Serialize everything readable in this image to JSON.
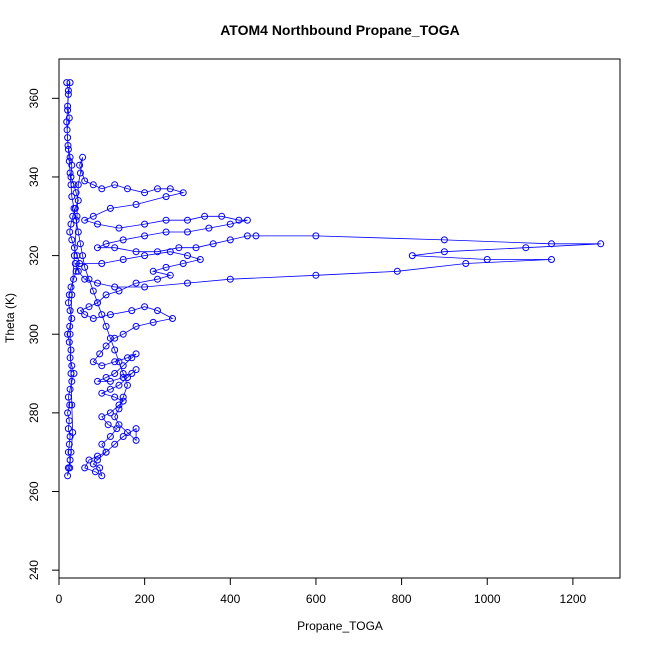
{
  "chart_data": {
    "type": "line",
    "title": "ATOM4 Northbound Propane_TOGA",
    "xlabel": "Propane_TOGA",
    "ylabel": "Theta (K)",
    "xlim": [
      0,
      1310
    ],
    "ylim": [
      238,
      370
    ],
    "xticks": [
      0,
      200,
      400,
      600,
      800,
      1000,
      1200
    ],
    "yticks": [
      240,
      260,
      280,
      300,
      320,
      340,
      360
    ],
    "color": "#0000ff",
    "grid": false,
    "legend": "none",
    "series": [
      {
        "marker": "open-circle",
        "points": [
          [
            18,
            364
          ],
          [
            22,
            362
          ],
          [
            20,
            358
          ],
          [
            24,
            355
          ],
          [
            19,
            352
          ],
          [
            21,
            348
          ],
          [
            26,
            345
          ],
          [
            30,
            343
          ],
          [
            28,
            340
          ],
          [
            35,
            338
          ],
          [
            40,
            336
          ],
          [
            45,
            334
          ],
          [
            38,
            332
          ],
          [
            32,
            330
          ],
          [
            28,
            328
          ],
          [
            25,
            326
          ],
          [
            30,
            324
          ],
          [
            36,
            322
          ],
          [
            42,
            320
          ],
          [
            48,
            318
          ],
          [
            40,
            316
          ],
          [
            34,
            314
          ],
          [
            28,
            312
          ],
          [
            24,
            310
          ],
          [
            22,
            308
          ],
          [
            26,
            306
          ],
          [
            30,
            304
          ],
          [
            25,
            302
          ],
          [
            20,
            300
          ],
          [
            24,
            298
          ],
          [
            28,
            296
          ],
          [
            26,
            294
          ],
          [
            30,
            292
          ],
          [
            35,
            290
          ],
          [
            30,
            288
          ],
          [
            26,
            286
          ],
          [
            22,
            284
          ],
          [
            25,
            282
          ],
          [
            20,
            280
          ],
          [
            24,
            278
          ],
          [
            22,
            276
          ],
          [
            26,
            274
          ],
          [
            24,
            272
          ],
          [
            22,
            270
          ],
          [
            26,
            268
          ],
          [
            22,
            266
          ],
          [
            20,
            264
          ],
          [
            25,
            266
          ],
          [
            28,
            270
          ],
          [
            32,
            275
          ],
          [
            30,
            282
          ],
          [
            28,
            290
          ],
          [
            26,
            300
          ],
          [
            30,
            310
          ],
          [
            36,
            320
          ],
          [
            42,
            330
          ],
          [
            45,
            338
          ],
          [
            50,
            341
          ],
          [
            55,
            345
          ],
          [
            48,
            343
          ],
          [
            60,
            339
          ],
          [
            80,
            338
          ],
          [
            100,
            337
          ],
          [
            130,
            338
          ],
          [
            160,
            337
          ],
          [
            200,
            336
          ],
          [
            230,
            337
          ],
          [
            260,
            337
          ],
          [
            290,
            336
          ],
          [
            250,
            335
          ],
          [
            180,
            333
          ],
          [
            120,
            332
          ],
          [
            80,
            330
          ],
          [
            60,
            329
          ],
          [
            90,
            328
          ],
          [
            140,
            327
          ],
          [
            200,
            328
          ],
          [
            250,
            329
          ],
          [
            300,
            329
          ],
          [
            340,
            330
          ],
          [
            380,
            330
          ],
          [
            420,
            329
          ],
          [
            440,
            329
          ],
          [
            400,
            328
          ],
          [
            350,
            327
          ],
          [
            300,
            326
          ],
          [
            250,
            326
          ],
          [
            200,
            325
          ],
          [
            150,
            324
          ],
          [
            110,
            323
          ],
          [
            90,
            322
          ],
          [
            130,
            322
          ],
          [
            180,
            321
          ],
          [
            230,
            321
          ],
          [
            280,
            322
          ],
          [
            320,
            322
          ],
          [
            360,
            323
          ],
          [
            400,
            324
          ],
          [
            440,
            325
          ],
          [
            460,
            325
          ],
          [
            600,
            325
          ],
          [
            900,
            324
          ],
          [
            1150,
            323
          ],
          [
            1265,
            323
          ],
          [
            1090,
            322
          ],
          [
            900,
            321
          ],
          [
            825,
            320
          ],
          [
            1000,
            319
          ],
          [
            1150,
            319
          ],
          [
            950,
            318
          ],
          [
            790,
            316
          ],
          [
            600,
            315
          ],
          [
            400,
            314
          ],
          [
            300,
            313
          ],
          [
            200,
            312
          ],
          [
            130,
            312
          ],
          [
            90,
            313
          ],
          [
            60,
            314
          ],
          [
            45,
            316
          ],
          [
            38,
            318
          ],
          [
            100,
            318
          ],
          [
            150,
            319
          ],
          [
            200,
            320
          ],
          [
            260,
            321
          ],
          [
            300,
            320
          ],
          [
            330,
            319
          ],
          [
            290,
            318
          ],
          [
            250,
            317
          ],
          [
            220,
            316
          ],
          [
            260,
            315
          ],
          [
            230,
            314
          ],
          [
            180,
            313
          ],
          [
            140,
            311
          ],
          [
            110,
            310
          ],
          [
            90,
            308
          ],
          [
            70,
            307
          ],
          [
            50,
            306
          ],
          [
            60,
            305
          ],
          [
            80,
            304
          ],
          [
            120,
            305
          ],
          [
            170,
            306
          ],
          [
            200,
            307
          ],
          [
            230,
            306
          ],
          [
            265,
            304
          ],
          [
            220,
            303
          ],
          [
            180,
            302
          ],
          [
            150,
            300
          ],
          [
            130,
            299
          ],
          [
            110,
            297
          ],
          [
            95,
            295
          ],
          [
            80,
            293
          ],
          [
            100,
            292
          ],
          [
            130,
            293
          ],
          [
            160,
            294
          ],
          [
            180,
            295
          ],
          [
            170,
            294
          ],
          [
            150,
            292
          ],
          [
            130,
            290
          ],
          [
            110,
            289
          ],
          [
            90,
            288
          ],
          [
            120,
            288
          ],
          [
            150,
            289
          ],
          [
            170,
            290
          ],
          [
            180,
            291
          ],
          [
            160,
            289
          ],
          [
            140,
            287
          ],
          [
            120,
            286
          ],
          [
            100,
            285
          ],
          [
            130,
            284
          ],
          [
            150,
            283
          ],
          [
            140,
            282
          ],
          [
            120,
            280
          ],
          [
            100,
            279
          ],
          [
            115,
            277
          ],
          [
            135,
            276
          ],
          [
            120,
            274
          ],
          [
            100,
            272
          ],
          [
            110,
            270
          ],
          [
            90,
            268
          ],
          [
            80,
            267
          ],
          [
            95,
            266
          ],
          [
            100,
            264
          ],
          [
            85,
            265
          ],
          [
            60,
            266
          ],
          [
            70,
            268
          ],
          [
            90,
            269
          ],
          [
            110,
            270
          ],
          [
            130,
            272
          ],
          [
            150,
            274
          ],
          [
            180,
            276
          ],
          [
            180,
            273
          ],
          [
            160,
            275
          ],
          [
            140,
            277
          ],
          [
            130,
            279
          ],
          [
            140,
            281
          ],
          [
            150,
            284
          ],
          [
            160,
            287
          ],
          [
            150,
            290
          ],
          [
            140,
            293
          ],
          [
            130,
            296
          ],
          [
            120,
            299
          ],
          [
            110,
            302
          ],
          [
            100,
            305
          ],
          [
            90,
            308
          ],
          [
            80,
            311
          ],
          [
            70,
            314
          ],
          [
            60,
            317
          ],
          [
            55,
            320
          ],
          [
            50,
            323
          ],
          [
            45,
            326
          ],
          [
            40,
            329
          ],
          [
            35,
            332
          ],
          [
            30,
            335
          ],
          [
            28,
            338
          ],
          [
            26,
            341
          ],
          [
            24,
            344
          ],
          [
            22,
            347
          ],
          [
            20,
            350
          ],
          [
            18,
            354
          ],
          [
            20,
            357
          ],
          [
            22,
            361
          ],
          [
            26,
            364
          ]
        ]
      }
    ]
  }
}
